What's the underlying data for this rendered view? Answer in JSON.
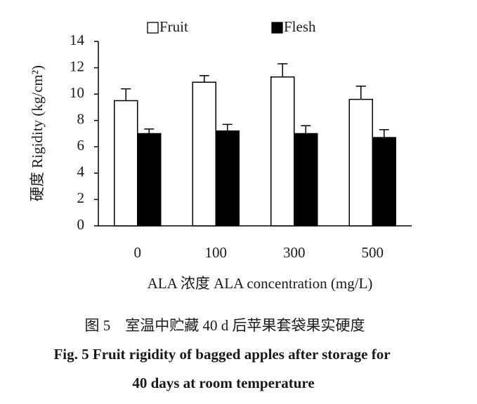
{
  "chart_data": {
    "type": "bar",
    "ylabel": "硬度 Rigidity (kg/cm²)",
    "xlabel": "ALA 浓度  ALA concentration (mg/L)",
    "categories": [
      "0",
      "100",
      "300",
      "500"
    ],
    "series": [
      {
        "name": "Fruit",
        "color": "#ffffff",
        "values": [
          9.5,
          10.9,
          11.3,
          9.6
        ],
        "errors": [
          0.9,
          0.5,
          1.0,
          1.0
        ]
      },
      {
        "name": "Flesh",
        "color": "#000000",
        "values": [
          7.0,
          7.2,
          7.0,
          6.7
        ],
        "errors": [
          0.35,
          0.5,
          0.6,
          0.6
        ]
      }
    ],
    "ylim": [
      0,
      14
    ],
    "yticks": [
      0,
      2,
      4,
      6,
      8,
      10,
      12,
      14
    ],
    "grid": false,
    "legend": "top",
    "caption": [
      "图 5　室温中贮藏 40 d 后苹果套袋果实硬度",
      "Fig. 5  Fruit rigidity of bagged apples after storage for",
      "40 days at room temperature"
    ]
  }
}
